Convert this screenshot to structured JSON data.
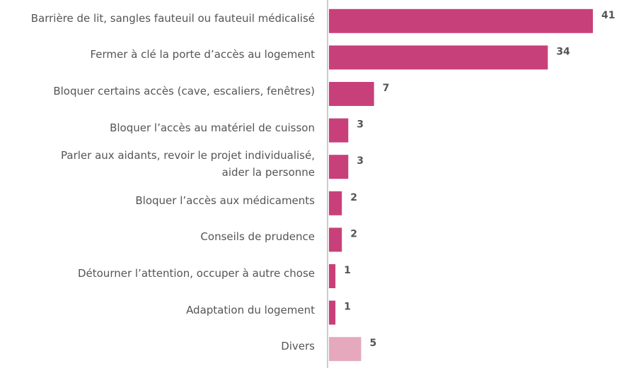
{
  "chart_data": {
    "type": "barh",
    "categories": [
      "Barrière de lit, sangles fauteuil ou fauteuil médicalisé",
      "Fermer à clé la porte d’accès au logement",
      "Bloquer certains accès (cave, escaliers, fenêtres)",
      "Bloquer l’accès au matériel de cuisson",
      "Parler aux aidants, revoir le projet individualisé,\naider la personne",
      "Bloquer l’accès aux médicaments",
      "Conseils de prudence",
      "Détourner l’attention, occuper à autre chose",
      "Adaptation du logement",
      "Divers"
    ],
    "values": [
      41,
      34,
      7,
      3,
      3,
      2,
      2,
      1,
      1,
      5
    ],
    "colors": [
      "#c8407a",
      "#c8407a",
      "#c8407a",
      "#c8407a",
      "#c8407a",
      "#c8407a",
      "#c8407a",
      "#c8407a",
      "#c8407a",
      "#e6a8bd"
    ],
    "xlim": [
      0,
      41
    ]
  }
}
